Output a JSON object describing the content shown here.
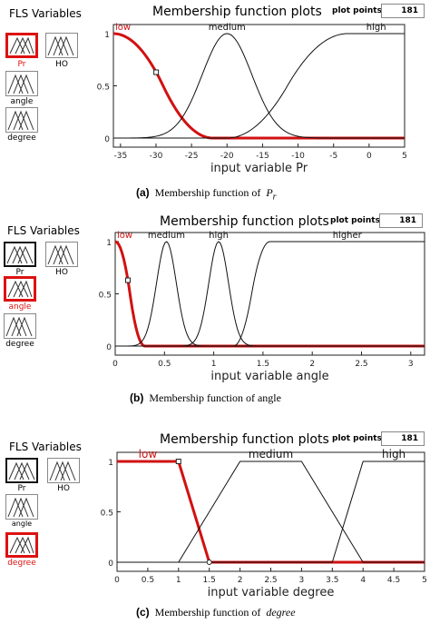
{
  "panels": [
    {
      "fls_label": "FLS Variables",
      "variables": [
        "Pr",
        "HO",
        "angle",
        "degree"
      ],
      "selected": "Pr",
      "plot_title": "Membership function plots",
      "plot_points_label": "plot points",
      "plot_points_value": "181",
      "caption_tag": "(a)",
      "caption_text": "Membership function of",
      "caption_var": "P",
      "caption_sub": "r"
    },
    {
      "fls_label": "FLS Variables",
      "variables": [
        "Pr",
        "HO",
        "angle",
        "degree"
      ],
      "selected": "angle",
      "plot_title": "Membership function plots",
      "plot_points_label": "plot points",
      "plot_points_value": "181",
      "caption_tag": "(b)",
      "caption_text": "Membership function of angle"
    },
    {
      "fls_label": "FLS Variables",
      "variables": [
        "Pr",
        "HO",
        "angle",
        "degree"
      ],
      "selected": "degree",
      "plot_title": "Membership function plots",
      "plot_points_label": "plot points",
      "plot_points_value": "181",
      "caption_tag": "(c)",
      "caption_text": "Membership function of",
      "caption_var": "degree"
    }
  ],
  "chart_data": [
    {
      "type": "line",
      "xlabel": "input variable Pr",
      "xlim": [
        -36,
        5
      ],
      "ylim": [
        0,
        1
      ],
      "xticks": [
        -35,
        -30,
        -25,
        -20,
        -15,
        -10,
        -5,
        0,
        5
      ],
      "yticks": [
        "0",
        "0.5",
        "1"
      ],
      "highlight_color": "#d11111",
      "series": [
        {
          "name": "low",
          "highlight": true,
          "shape": "zmf",
          "params": [
            -36,
            -22
          ]
        },
        {
          "name": "medium",
          "shape": "gauss",
          "center": -20,
          "sigma": 3.5
        },
        {
          "name": "high",
          "shape": "smf",
          "params": [
            -20,
            -3
          ]
        }
      ]
    },
    {
      "type": "line",
      "xlabel": "input variable angle",
      "xlim": [
        0,
        3.14
      ],
      "ylim": [
        0,
        1
      ],
      "xticks": [
        0,
        0.5,
        1,
        1.5,
        2,
        2.5,
        3
      ],
      "yticks": [
        "0",
        "0.5",
        "1"
      ],
      "highlight_color": "#d11111",
      "series": [
        {
          "name": "low",
          "highlight": true,
          "shape": "zmf",
          "params": [
            0,
            0.3
          ]
        },
        {
          "name": "medium",
          "shape": "gauss",
          "center": 0.52,
          "sigma": 0.1
        },
        {
          "name": "high",
          "shape": "gauss",
          "center": 1.05,
          "sigma": 0.1
        },
        {
          "name": "higher",
          "shape": "smf",
          "params": [
            1.2,
            1.57
          ]
        }
      ]
    },
    {
      "type": "line",
      "xlabel": "input variable degree",
      "xlim": [
        0,
        5
      ],
      "ylim": [
        0,
        1
      ],
      "xticks": [
        0,
        0.5,
        1,
        1.5,
        2,
        2.5,
        3,
        3.5,
        4,
        4.5,
        5
      ],
      "yticks": [
        "0",
        "0.5",
        "1"
      ],
      "highlight_color": "#d11111",
      "series": [
        {
          "name": "low",
          "highlight": true,
          "shape": "trap",
          "points": [
            [
              0,
              1
            ],
            [
              1,
              1
            ],
            [
              1.5,
              0
            ]
          ]
        },
        {
          "name": "medium",
          "shape": "trap",
          "points": [
            [
              1,
              0
            ],
            [
              2,
              1
            ],
            [
              3,
              1
            ],
            [
              4,
              0
            ]
          ]
        },
        {
          "name": "high",
          "shape": "trap",
          "points": [
            [
              3.5,
              0
            ],
            [
              4,
              1
            ],
            [
              5,
              1
            ]
          ]
        }
      ]
    }
  ]
}
